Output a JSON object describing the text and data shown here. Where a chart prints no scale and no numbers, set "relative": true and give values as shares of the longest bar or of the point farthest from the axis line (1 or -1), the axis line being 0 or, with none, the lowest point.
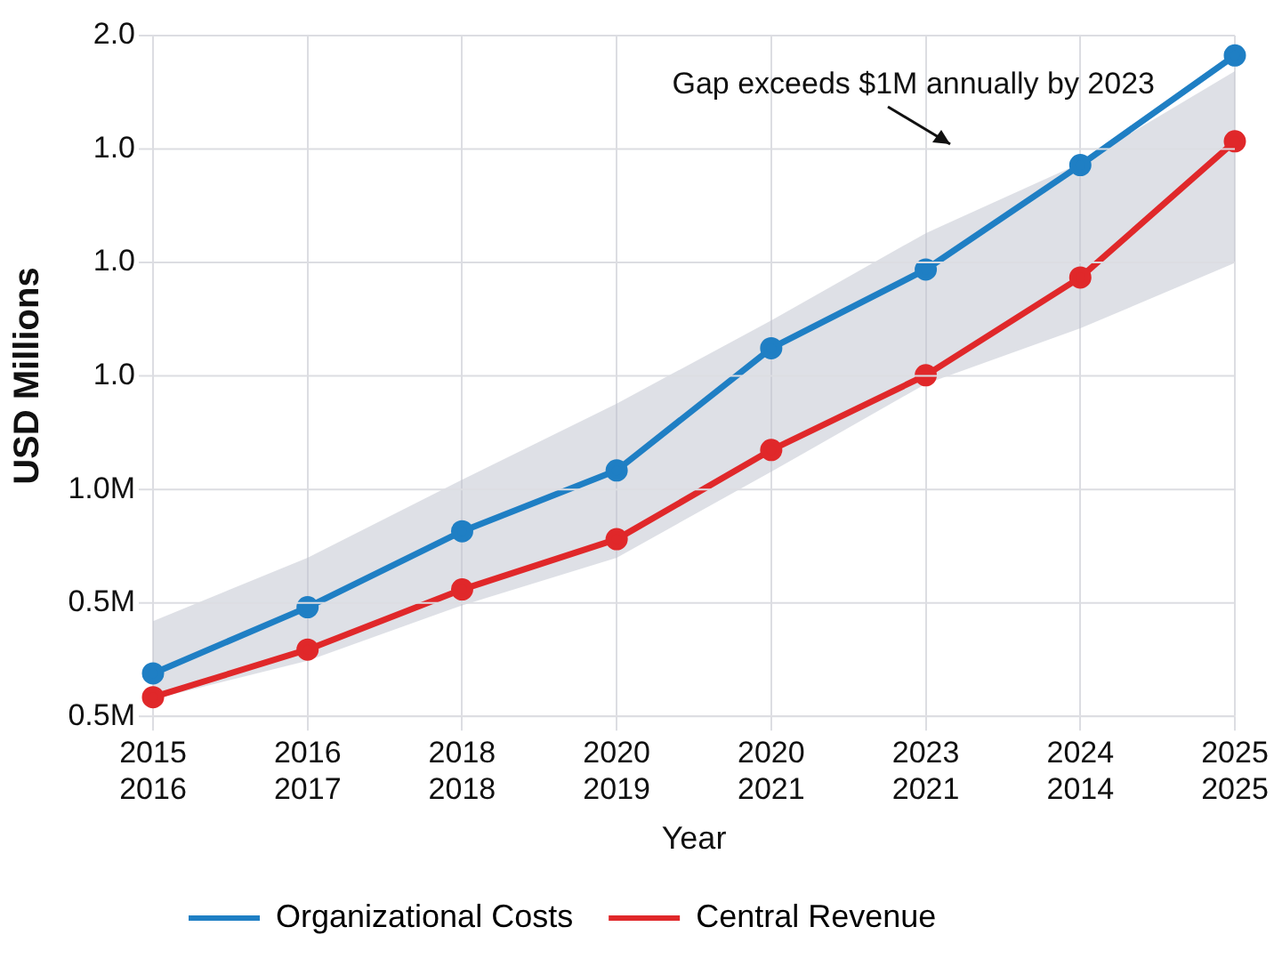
{
  "chart_data": {
    "type": "line",
    "xlabel": "Year",
    "ylabel": "USD Millions",
    "relative": true,
    "categories": [
      "2015\n2016",
      "2016\n2017",
      "2018\n2018",
      "2020\n2019",
      "2020\n2021",
      "2023\n2021",
      "2024\n2014",
      "2025\n2025"
    ],
    "series": [
      {
        "name": "Organizational Costs",
        "color": "#1f7fc4",
        "values": [
          0.065,
          0.165,
          0.28,
          0.372,
          0.557,
          0.676,
          0.834,
          1
        ],
        "lower": [
          0.026,
          0.084,
          0.168,
          0.24,
          0.37,
          0.503,
          0.587,
          0.686
        ],
        "upper": [
          0.144,
          0.24,
          0.358,
          0.473,
          0.599,
          0.731,
          0.837,
          0.976
        ]
      },
      {
        "name": "Central Revenue",
        "color": "#e0282a",
        "values": [
          0.029,
          0.101,
          0.192,
          0.268,
          0.403,
          0.516,
          0.664,
          0.87
        ]
      }
    ],
    "annotations": [
      "Gap exceeds $1M annually by 2023",
      "2.0",
      "1.0",
      "1.0",
      "1.0",
      "1.0M",
      "0.5M",
      "0.5M"
    ],
    "grid": true,
    "legend": "bottom",
    "marker": "circle",
    "line_style": "solid"
  }
}
